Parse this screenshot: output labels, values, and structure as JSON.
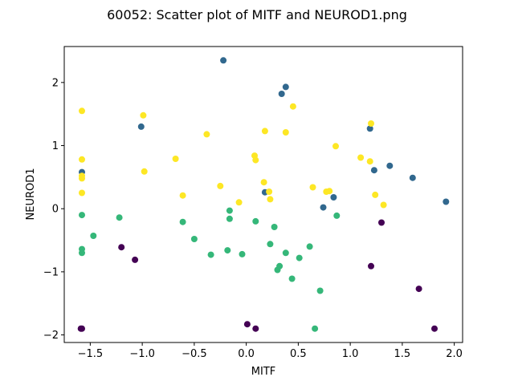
{
  "chart_data": {
    "type": "scatter",
    "title": "60052: Scatter plot of MITF and NEUROD1.png",
    "xlabel": "MITF",
    "ylabel": "NEUROD1",
    "xlim": [
      -1.75,
      2.08
    ],
    "ylim": [
      -2.12,
      2.57
    ],
    "x_ticks": [
      -1.5,
      -1.0,
      -0.5,
      0.0,
      0.5,
      1.0,
      1.5,
      2.0
    ],
    "x_tick_labels": [
      "−1.5",
      "−1.0",
      "−0.5",
      "0.0",
      "0.5",
      "1.0",
      "1.5",
      "2.0"
    ],
    "y_ticks": [
      -2,
      -1,
      0,
      1,
      2
    ],
    "y_tick_labels": [
      "−2",
      "−1",
      "0",
      "1",
      "2"
    ],
    "grid": false,
    "legend": "none",
    "colors": {
      "group_purple": "#440154",
      "group_blue": "#31688e",
      "group_green": "#35b779",
      "group_yellow": "#fde725"
    },
    "series": [
      {
        "color": "#440154",
        "points": [
          [
            -1.59,
            -1.9
          ],
          [
            -1.58,
            -1.9
          ],
          [
            -1.2,
            -0.61
          ],
          [
            -1.07,
            -0.81
          ],
          [
            0.01,
            -1.83
          ],
          [
            0.09,
            -1.9
          ],
          [
            1.2,
            -0.91
          ],
          [
            1.3,
            -0.22
          ],
          [
            1.66,
            -1.27
          ],
          [
            1.81,
            -1.9
          ]
        ]
      },
      {
        "color": "#31688e",
        "points": [
          [
            -0.22,
            2.35
          ],
          [
            0.38,
            1.93
          ],
          [
            0.34,
            1.82
          ],
          [
            -1.01,
            1.3
          ],
          [
            1.19,
            1.27
          ],
          [
            1.38,
            0.68
          ],
          [
            1.23,
            0.61
          ],
          [
            1.6,
            0.49
          ],
          [
            -1.58,
            0.58
          ],
          [
            0.18,
            0.26
          ],
          [
            0.84,
            0.18
          ],
          [
            0.74,
            0.02
          ],
          [
            1.92,
            0.11
          ]
        ]
      },
      {
        "color": "#35b779",
        "points": [
          [
            -1.58,
            -0.1
          ],
          [
            -1.22,
            -0.14
          ],
          [
            -1.47,
            -0.43
          ],
          [
            -1.58,
            -0.64
          ],
          [
            -1.58,
            -0.7
          ],
          [
            -0.61,
            -0.21
          ],
          [
            -0.5,
            -0.48
          ],
          [
            -0.34,
            -0.73
          ],
          [
            -0.18,
            -0.66
          ],
          [
            -0.16,
            -0.03
          ],
          [
            -0.16,
            -0.16
          ],
          [
            -0.04,
            -0.72
          ],
          [
            0.09,
            -0.2
          ],
          [
            0.23,
            -0.56
          ],
          [
            0.27,
            -0.29
          ],
          [
            0.38,
            -0.7
          ],
          [
            0.3,
            -0.97
          ],
          [
            0.32,
            -0.91
          ],
          [
            0.44,
            -1.11
          ],
          [
            0.51,
            -0.78
          ],
          [
            0.61,
            -0.6
          ],
          [
            0.66,
            -1.9
          ],
          [
            0.71,
            -1.3
          ],
          [
            0.87,
            -0.11
          ]
        ]
      },
      {
        "color": "#fde725",
        "points": [
          [
            -1.58,
            1.55
          ],
          [
            -0.99,
            1.48
          ],
          [
            -0.38,
            1.18
          ],
          [
            0.45,
            1.62
          ],
          [
            0.18,
            1.23
          ],
          [
            0.38,
            1.21
          ],
          [
            1.2,
            1.35
          ],
          [
            -1.58,
            0.78
          ],
          [
            -0.68,
            0.79
          ],
          [
            -0.98,
            0.59
          ],
          [
            0.08,
            0.84
          ],
          [
            0.09,
            0.77
          ],
          [
            0.17,
            0.42
          ],
          [
            0.86,
            0.99
          ],
          [
            1.1,
            0.81
          ],
          [
            1.19,
            0.75
          ],
          [
            -1.58,
            0.52
          ],
          [
            -1.58,
            0.48
          ],
          [
            -1.58,
            0.25
          ],
          [
            -0.61,
            0.21
          ],
          [
            -0.25,
            0.36
          ],
          [
            -0.07,
            0.1
          ],
          [
            0.22,
            0.27
          ],
          [
            0.23,
            0.15
          ],
          [
            0.64,
            0.34
          ],
          [
            0.77,
            0.27
          ],
          [
            0.8,
            0.28
          ],
          [
            1.24,
            0.22
          ],
          [
            1.32,
            0.06
          ]
        ]
      }
    ]
  }
}
